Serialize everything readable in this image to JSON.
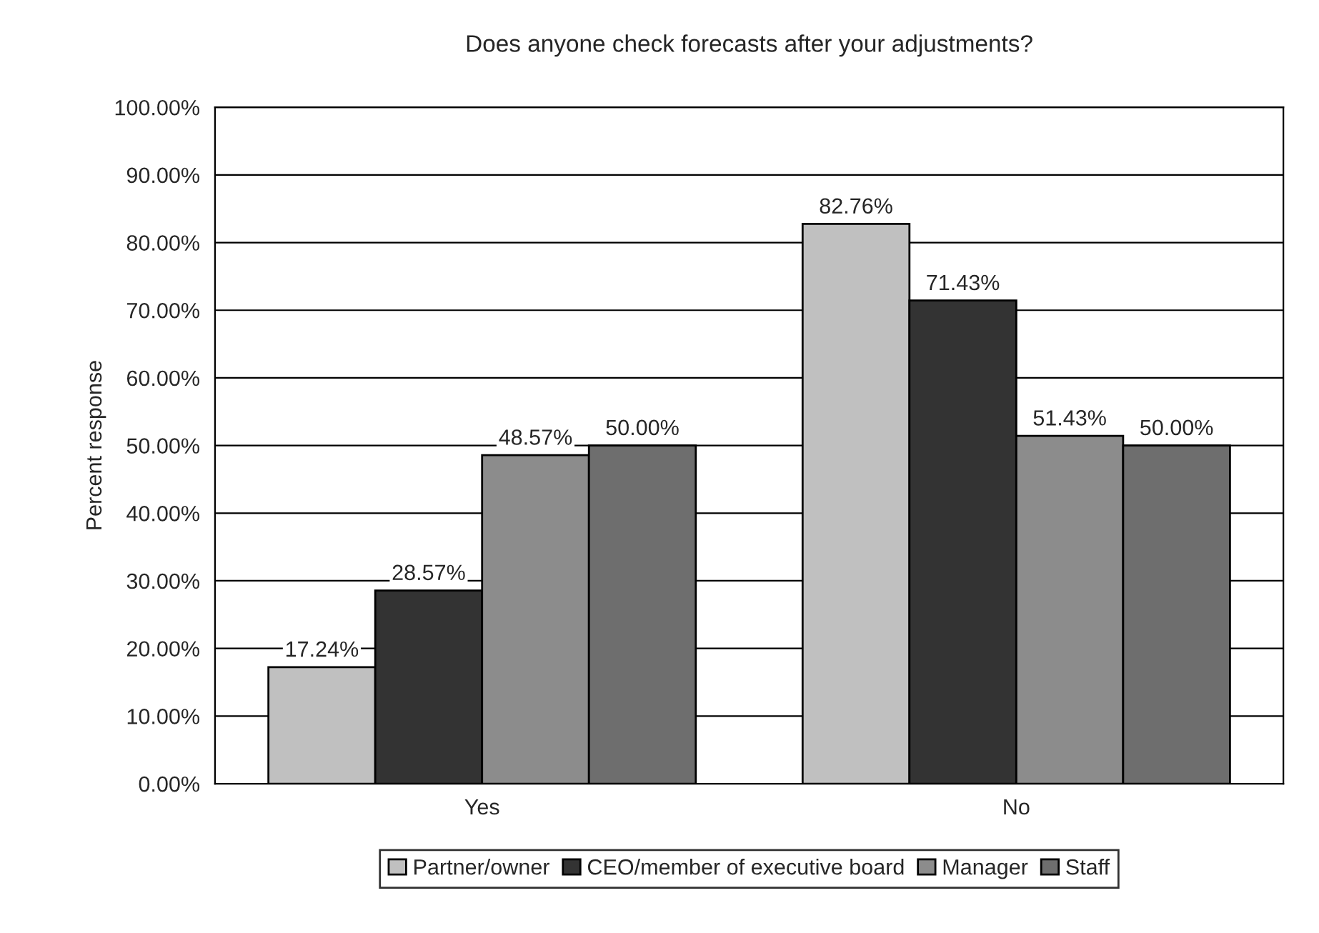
{
  "chart_data": {
    "type": "bar",
    "title": "Does anyone check forecasts after your adjustments?",
    "ylabel": "Percent response",
    "categories": [
      "Yes",
      "No"
    ],
    "series": [
      {
        "name": "Partner/owner",
        "color": "#c0c0c0",
        "values": [
          17.24,
          82.76
        ],
        "value_labels": [
          "17.24%",
          "82.76%"
        ]
      },
      {
        "name": "CEO/member of executive board",
        "color": "#333333",
        "values": [
          28.57,
          71.43
        ],
        "value_labels": [
          "28.57%",
          "71.43%"
        ]
      },
      {
        "name": "Manager",
        "color": "#8c8c8c",
        "values": [
          48.57,
          51.43
        ],
        "value_labels": [
          "48.57%",
          "51.43%"
        ]
      },
      {
        "name": "Staff",
        "color": "#6e6e6e",
        "values": [
          50.0,
          50.0
        ],
        "value_labels": [
          "50.00%",
          "50.00%"
        ]
      }
    ],
    "ylim": [
      0,
      100
    ],
    "yticks": [
      {
        "value": 0,
        "label": "0.00%"
      },
      {
        "value": 10,
        "label": "10.00%"
      },
      {
        "value": 20,
        "label": "20.00%"
      },
      {
        "value": 30,
        "label": "30.00%"
      },
      {
        "value": 40,
        "label": "40.00%"
      },
      {
        "value": 50,
        "label": "50.00%"
      },
      {
        "value": 60,
        "label": "60.00%"
      },
      {
        "value": 70,
        "label": "70.00%"
      },
      {
        "value": 80,
        "label": "80.00%"
      },
      {
        "value": 90,
        "label": "90.00%"
      },
      {
        "value": 100,
        "label": "100.00%"
      }
    ],
    "grid": "y",
    "legend": "bottom"
  }
}
